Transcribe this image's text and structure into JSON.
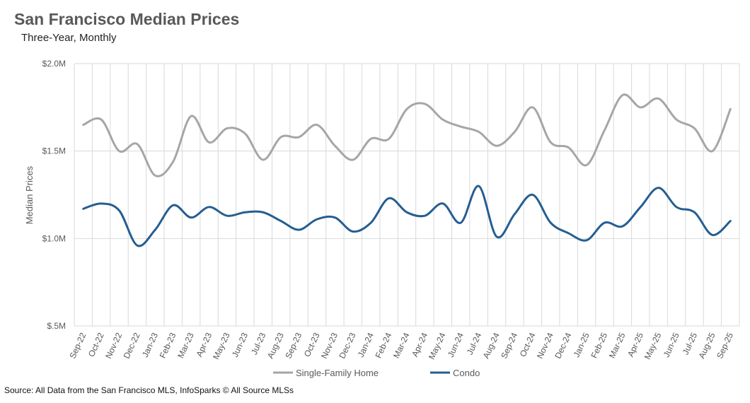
{
  "chart_data": {
    "type": "line",
    "title": "San Francisco Median Prices",
    "subtitle": "Three-Year, Monthly",
    "ylabel": "Median Prices",
    "xlabel": "",
    "ylim": [
      0.5,
      2.0
    ],
    "y_unit": "$M",
    "y_ticks": [
      {
        "v": 2.0,
        "label": "$2.0M"
      },
      {
        "v": 1.5,
        "label": "$1.5M"
      },
      {
        "v": 1.0,
        "label": "$1.0M"
      },
      {
        "v": 0.5,
        "label": "$.5M"
      }
    ],
    "grid": "on",
    "legend_position": "bottom",
    "categories": [
      "Sep-22",
      "Oct-22",
      "Nov-22",
      "Dec-22",
      "Jan-23",
      "Feb-23",
      "Mar-23",
      "Apr-23",
      "May-23",
      "Jun-23",
      "Jul-23",
      "Aug-23",
      "Sep-23",
      "Oct-23",
      "Nov-23",
      "Dec-23",
      "Jan-24",
      "Feb-24",
      "Mar-24",
      "Apr-24",
      "May-24",
      "Jun-24",
      "Jul-24",
      "Aug-24",
      "Sep-24",
      "Oct-24",
      "Nov-24",
      "Dec-24",
      "Jan-25",
      "Feb-25",
      "Mar-25",
      "Apr-25",
      "May-25",
      "Jun-25",
      "Jul-25",
      "Aug-25",
      "Sep-25"
    ],
    "series": [
      {
        "name": "Single-Family Home",
        "color": "#a6a6a6",
        "values": [
          1.65,
          1.68,
          1.5,
          1.54,
          1.36,
          1.44,
          1.7,
          1.55,
          1.63,
          1.6,
          1.45,
          1.58,
          1.58,
          1.65,
          1.53,
          1.45,
          1.57,
          1.57,
          1.74,
          1.77,
          1.68,
          1.64,
          1.61,
          1.53,
          1.61,
          1.75,
          1.55,
          1.52,
          1.42,
          1.62,
          1.82,
          1.75,
          1.8,
          1.68,
          1.63,
          1.5,
          1.74
        ]
      },
      {
        "name": "Condo",
        "color": "#255e91",
        "values": [
          1.17,
          1.2,
          1.16,
          0.96,
          1.05,
          1.19,
          1.12,
          1.18,
          1.13,
          1.15,
          1.15,
          1.1,
          1.05,
          1.11,
          1.12,
          1.04,
          1.09,
          1.23,
          1.15,
          1.13,
          1.2,
          1.09,
          1.3,
          1.01,
          1.14,
          1.25,
          1.09,
          1.03,
          0.99,
          1.09,
          1.07,
          1.18,
          1.29,
          1.18,
          1.15,
          1.02,
          1.1
        ]
      }
    ]
  },
  "source": "Source: All Data from the San Francisco MLS, InfoSparks © All Source MLSs"
}
